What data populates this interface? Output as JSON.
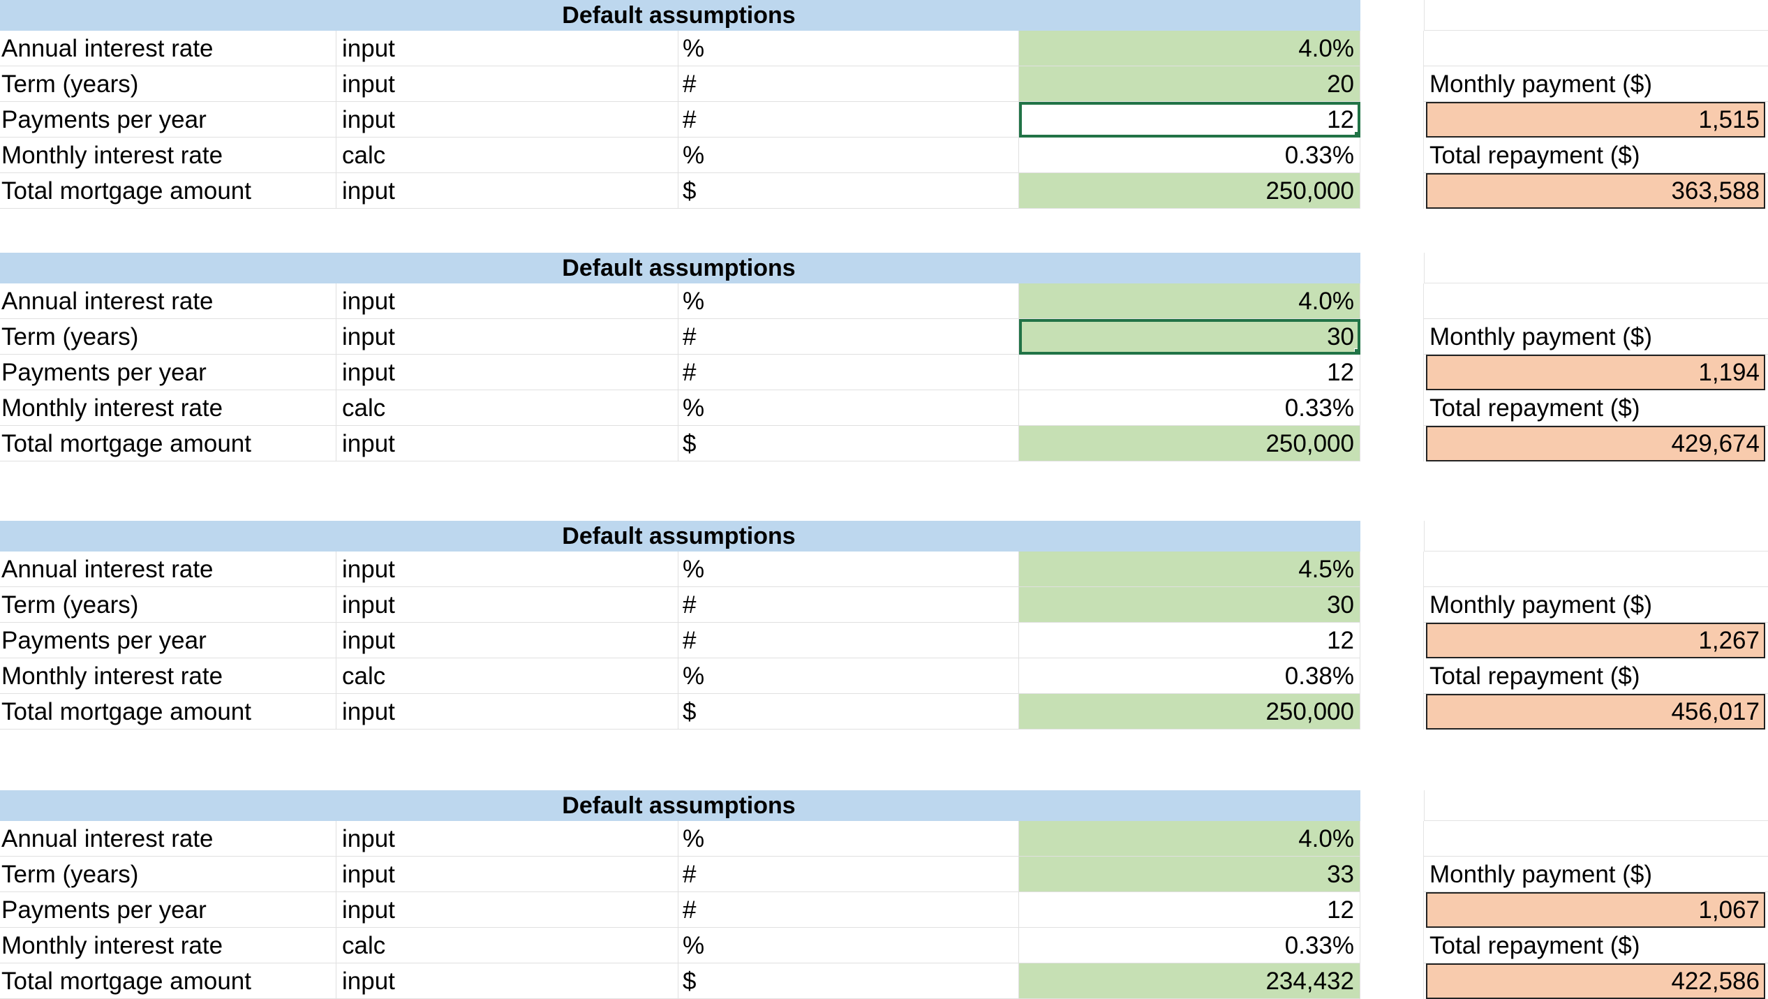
{
  "header_title": "Default assumptions",
  "labels": {
    "monthly_payment": "Monthly payment ($)",
    "total_repayment": "Total repayment ($)"
  },
  "row_labels": [
    "Annual interest rate",
    "Term (years)",
    "Payments per year",
    "Monthly interest rate",
    "Total mortgage amount"
  ],
  "row_types": [
    "input",
    "input",
    "input",
    "calc",
    "input"
  ],
  "row_units": [
    "%",
    "#",
    "#",
    "%",
    "$"
  ],
  "colors": {
    "header": "#bdd7ee",
    "input_fill": "#c6e0b4",
    "output_fill": "#f8cbad",
    "selection_border": "#217346"
  },
  "scenarios": [
    {
      "values": [
        "4.0%",
        "20",
        "12",
        "0.33%",
        "250,000"
      ],
      "green": [
        true,
        true,
        false,
        false,
        true
      ],
      "selected_row": 2,
      "monthly_payment": "1,515",
      "total_repayment": "363,588"
    },
    {
      "values": [
        "4.0%",
        "30",
        "12",
        "0.33%",
        "250,000"
      ],
      "green": [
        true,
        true,
        false,
        false,
        true
      ],
      "selected_row": 1,
      "monthly_payment": "1,194",
      "total_repayment": "429,674"
    },
    {
      "values": [
        "4.5%",
        "30",
        "12",
        "0.38%",
        "250,000"
      ],
      "green": [
        true,
        true,
        false,
        false,
        true
      ],
      "selected_row": -1,
      "monthly_payment": "1,267",
      "total_repayment": "456,017"
    },
    {
      "values": [
        "4.0%",
        "33",
        "12",
        "0.33%",
        "234,432"
      ],
      "green": [
        true,
        true,
        false,
        false,
        true
      ],
      "selected_row": -1,
      "monthly_payment": "1,067",
      "total_repayment": "422,586"
    }
  ]
}
